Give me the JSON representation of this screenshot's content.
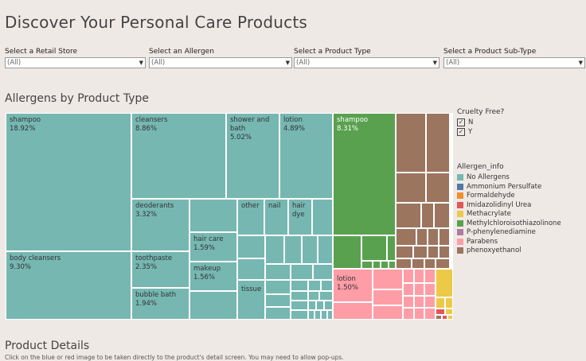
{
  "title": "Discover Your Personal Care Products",
  "filters": [
    {
      "label": "Select a Retail Store",
      "value": "(All)"
    },
    {
      "label": "Select an Allergen",
      "value": "(All)"
    },
    {
      "label": "Select a Product Type",
      "value": "(All)"
    },
    {
      "label": "Select a Product Sub-Type",
      "value": "(All)"
    }
  ],
  "chart_section_title": "Allergens by Product Type",
  "chart_data": {
    "type": "treemap",
    "title": "Allergens by Product Type",
    "labeled_cells": [
      {
        "label": "shampoo",
        "value": "18.92%",
        "allergen": "No Allergens"
      },
      {
        "label": "cleansers",
        "value": "8.86%",
        "allergen": "No Allergens"
      },
      {
        "label": "shower and bath",
        "value": "5.02%",
        "allergen": "No Allergens"
      },
      {
        "label": "lotion",
        "value": "4.89%",
        "allergen": "No Allergens"
      },
      {
        "label": "body cleansers",
        "value": "9.30%",
        "allergen": "No Allergens"
      },
      {
        "label": "deoderants",
        "value": "3.32%",
        "allergen": "No Allergens"
      },
      {
        "label": "toothpaste",
        "value": "2.35%",
        "allergen": "No Allergens"
      },
      {
        "label": "bubble bath",
        "value": "1.94%",
        "allergen": "No Allergens"
      },
      {
        "label": "hair care",
        "value": "1.59%",
        "allergen": "No Allergens"
      },
      {
        "label": "makeup",
        "value": "1.56%",
        "allergen": "No Allergens"
      },
      {
        "label": "other",
        "value": "",
        "allergen": "No Allergens"
      },
      {
        "label": "nail",
        "value": "",
        "allergen": "No Allergens"
      },
      {
        "label": "hair dye",
        "value": "",
        "allergen": "No Allergens"
      },
      {
        "label": "tissue",
        "value": "",
        "allergen": "No Allergens"
      },
      {
        "label": "shampoo",
        "value": "8.31%",
        "allergen": "Methylchloroisothiazolinone"
      },
      {
        "label": "lotion",
        "value": "1.50%",
        "allergen": "Parabens"
      }
    ]
  },
  "legend_cruelty": {
    "title": "Cruelty Free?",
    "items": [
      "N",
      "Y"
    ]
  },
  "legend_allergen": {
    "title": "Allergen_info",
    "items": [
      {
        "label": "No Allergens",
        "color": "#76b7b2"
      },
      {
        "label": "Ammonium Persulfate",
        "color": "#4e79a7"
      },
      {
        "label": "Formaldehyde",
        "color": "#f28e2b"
      },
      {
        "label": "Imidazolidinyl Urea",
        "color": "#e15759"
      },
      {
        "label": "Methacrylate",
        "color": "#edc948"
      },
      {
        "label": "Methylchloroisothiazolinone",
        "color": "#59a14f"
      },
      {
        "label": "P-phenylenediamine",
        "color": "#b07aa1"
      },
      {
        "label": "Parabens",
        "color": "#ff9da7"
      },
      {
        "label": "phenoxyethanol",
        "color": "#9c755f"
      }
    ]
  },
  "details_title": "Product Details",
  "details_note": "Click on the blue or red image to be taken directly to the product's detail screen.  You may need to allow pop-ups."
}
